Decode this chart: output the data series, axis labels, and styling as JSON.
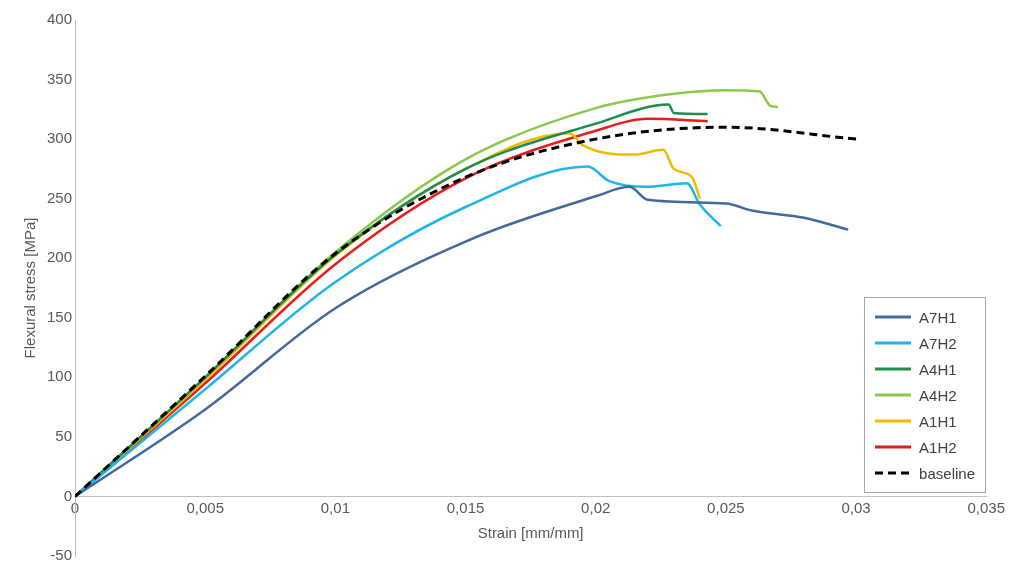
{
  "chart_data": {
    "type": "line",
    "xlabel": "Strain [mm/mm]",
    "ylabel": "Flexural stress [MPa]",
    "xlim": [
      0,
      0.035
    ],
    "xticks": [
      0,
      {
        "value": 0.005,
        "label": "0,005"
      },
      {
        "value": 0.01,
        "label": "0,01"
      },
      {
        "value": 0.015,
        "label": "0,015"
      },
      {
        "value": 0.02,
        "label": "0,02"
      },
      {
        "value": 0.025,
        "label": "0,025"
      },
      {
        "value": 0.03,
        "label": "0,03"
      },
      {
        "value": 0.035,
        "label": "0,035"
      }
    ],
    "ylim": [
      -50,
      400
    ],
    "yticks": [
      -50,
      0,
      50,
      100,
      150,
      200,
      250,
      300,
      350,
      400
    ],
    "grid": false,
    "legend": "bottom right",
    "marker": "none",
    "series": [
      {
        "name": "A7H1",
        "color": "#44689e",
        "x": [
          0,
          0.005,
          0.01,
          0.015,
          0.02,
          0.0213,
          0.022,
          0.025,
          0.026,
          0.028,
          0.0297
        ],
        "values": [
          0,
          73,
          158,
          214,
          252,
          260,
          249,
          246,
          240,
          234,
          224
        ]
      },
      {
        "name": "A7H2",
        "color": "#20b4e8",
        "x": [
          0,
          0.005,
          0.01,
          0.015,
          0.0197,
          0.0205,
          0.022,
          0.0235,
          0.024,
          0.0248
        ],
        "values": [
          0,
          90,
          180,
          243,
          277,
          265,
          260,
          263,
          245,
          227
        ]
      },
      {
        "name": "A4H1",
        "color": "#1e8c4e",
        "x": [
          0,
          0.005,
          0.01,
          0.015,
          0.02,
          0.0228,
          0.023,
          0.0243
        ],
        "values": [
          0,
          100,
          203,
          275,
          313,
          329,
          322,
          321
        ]
      },
      {
        "name": "A4H2",
        "color": "#8cc84e",
        "x": [
          0,
          0.005,
          0.01,
          0.015,
          0.02,
          0.023,
          0.025,
          0.0263,
          0.0267,
          0.027
        ],
        "values": [
          0,
          100,
          205,
          283,
          326,
          338,
          341,
          340,
          328,
          327
        ]
      },
      {
        "name": "A1H1",
        "color": "#f5b800",
        "x": [
          0,
          0.005,
          0.01,
          0.015,
          0.019,
          0.0195,
          0.0215,
          0.0226,
          0.023,
          0.0237,
          0.024
        ],
        "values": [
          0,
          98,
          202,
          275,
          305,
          295,
          287,
          291,
          275,
          268,
          250
        ]
      },
      {
        "name": "A1H2",
        "color": "#e81c1c",
        "x": [
          0,
          0.005,
          0.01,
          0.015,
          0.02,
          0.022,
          0.0243
        ],
        "values": [
          0,
          95,
          195,
          267,
          307,
          317,
          315
        ]
      },
      {
        "name": "baseline",
        "color": "#000000",
        "line_style": "dashed",
        "x": [
          0,
          0.005,
          0.01,
          0.015,
          0.02,
          0.025,
          0.03
        ],
        "values": [
          0,
          101,
          204,
          268,
          300,
          310,
          300
        ]
      }
    ]
  }
}
